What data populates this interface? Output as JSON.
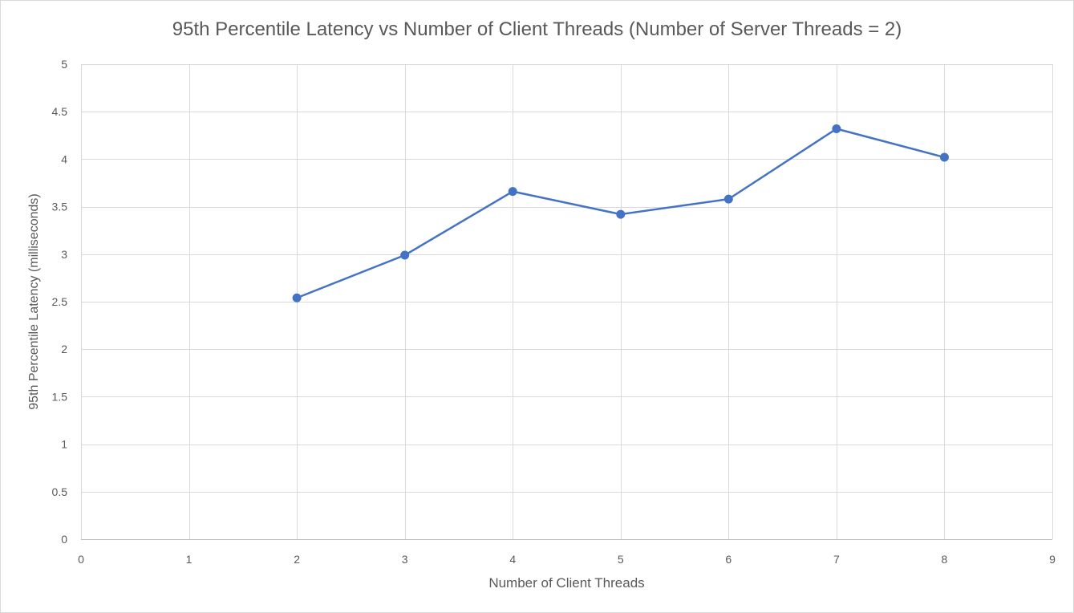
{
  "chart_data": {
    "type": "line",
    "title": "95th Percentile Latency vs Number of Client Threads (Number of Server Threads = 2)",
    "xlabel": "Number of Client Threads",
    "ylabel": "95th Percentile Latency (milliseconds)",
    "xlim": [
      0,
      9
    ],
    "ylim": [
      0,
      5
    ],
    "x_ticks": [
      0,
      1,
      2,
      3,
      4,
      5,
      6,
      7,
      8,
      9
    ],
    "y_ticks": [
      0,
      0.5,
      1,
      1.5,
      2,
      2.5,
      3,
      3.5,
      4,
      4.5,
      5
    ],
    "grid": true,
    "legend": "none",
    "series": [
      {
        "x": [
          2,
          3,
          4,
          5,
          6,
          7,
          8
        ],
        "values": [
          2.54,
          2.99,
          3.66,
          3.42,
          3.58,
          4.32,
          4.02
        ],
        "color": "#4472c4",
        "markers": true
      }
    ]
  }
}
